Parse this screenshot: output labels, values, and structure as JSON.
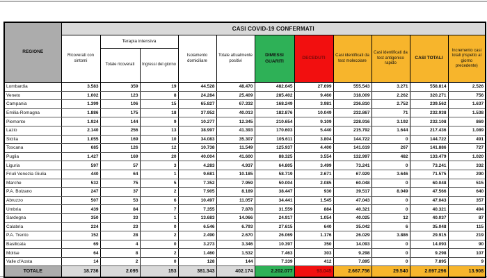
{
  "colors": {
    "header_gray": "#acacac",
    "band_gray": "#d9d9d9",
    "green": "#2eb157",
    "red": "#f20f0f",
    "amber": "#f7b52c",
    "deceduti_text": "#7e0a0a",
    "edge_gray": "#b0b0b0"
  },
  "chart_data": {
    "type": "table",
    "title": "CASI COVID-19 CONFERMATI",
    "columns": [
      "REGIONE",
      "Ricoverati con sintomi",
      "Totale ricoverati",
      "Ingressi del giorno",
      "Isolamento domiciliare",
      "Totale attualmente positivi",
      "DIMESSI GUARITI",
      "DECEDUTI",
      "Casi identificati da test molecolare",
      "Casi identificati da test antigenico rapido",
      "CASI TOTALI",
      "Incremento casi totali (rispetto al giorno precedente)"
    ],
    "column_groups": [
      {
        "label": "Terapia intensiva",
        "spans": [
          "Totale ricoverati",
          "Ingressi del giorno"
        ]
      }
    ],
    "rows": [
      {
        "regione": "Lombardia",
        "values": [
          "3.583",
          "359",
          "19",
          "44.528",
          "48.470",
          "482.645",
          "27.699",
          "555.543",
          "3.271",
          "558.814",
          "2.526"
        ]
      },
      {
        "regione": "Veneto",
        "values": [
          "1.002",
          "123",
          "8",
          "24.284",
          "25.409",
          "285.402",
          "9.460",
          "318.009",
          "2.262",
          "320.271",
          "756"
        ]
      },
      {
        "regione": "Campania",
        "values": [
          "1.399",
          "106",
          "15",
          "65.827",
          "67.332",
          "168.249",
          "3.981",
          "236.810",
          "2.752",
          "239.562",
          "1.637"
        ]
      },
      {
        "regione": "Emilia-Romagna",
        "values": [
          "1.886",
          "175",
          "18",
          "37.952",
          "40.013",
          "182.876",
          "10.049",
          "232.867",
          "71",
          "232.938",
          "1.538"
        ]
      },
      {
        "regione": "Piemonte",
        "values": [
          "1.924",
          "144",
          "9",
          "10.277",
          "12.345",
          "210.654",
          "9.109",
          "228.916",
          "3.192",
          "232.108",
          "869"
        ]
      },
      {
        "regione": "Lazio",
        "values": [
          "2.140",
          "256",
          "13",
          "38.997",
          "41.393",
          "170.603",
          "5.440",
          "215.792",
          "1.644",
          "217.436",
          "1.089"
        ]
      },
      {
        "regione": "Sicilia",
        "values": [
          "1.055",
          "169",
          "10",
          "34.083",
          "35.307",
          "105.611",
          "3.804",
          "144.722",
          "0",
          "144.722",
          "491"
        ]
      },
      {
        "regione": "Toscana",
        "values": [
          "685",
          "126",
          "12",
          "10.738",
          "11.549",
          "125.937",
          "4.400",
          "141.619",
          "267",
          "141.886",
          "727"
        ]
      },
      {
        "regione": "Puglia",
        "values": [
          "1.427",
          "169",
          "20",
          "40.004",
          "41.600",
          "88.325",
          "3.554",
          "132.997",
          "482",
          "133.479",
          "1.020"
        ]
      },
      {
        "regione": "Liguria",
        "values": [
          "597",
          "57",
          "3",
          "4.283",
          "4.937",
          "64.805",
          "3.499",
          "73.241",
          "0",
          "73.241",
          "332"
        ]
      },
      {
        "regione": "Friuli Venezia Giulia",
        "values": [
          "440",
          "64",
          "1",
          "9.681",
          "10.185",
          "58.719",
          "2.671",
          "67.929",
          "3.646",
          "71.575",
          "290"
        ]
      },
      {
        "regione": "Marche",
        "values": [
          "532",
          "75",
          "5",
          "7.352",
          "7.959",
          "50.004",
          "2.085",
          "60.048",
          "0",
          "60.048",
          "515"
        ]
      },
      {
        "regione": "P.A. Bolzano",
        "values": [
          "247",
          "37",
          "2",
          "7.905",
          "8.189",
          "38.447",
          "930",
          "39.517",
          "8.049",
          "47.566",
          "640"
        ]
      },
      {
        "regione": "Abruzzo",
        "values": [
          "507",
          "53",
          "6",
          "10.497",
          "11.057",
          "34.441",
          "1.545",
          "47.043",
          "0",
          "47.043",
          "357"
        ]
      },
      {
        "regione": "Umbria",
        "values": [
          "439",
          "84",
          "7",
          "7.355",
          "7.878",
          "31.559",
          "884",
          "40.321",
          "0",
          "40.321",
          "494"
        ]
      },
      {
        "regione": "Sardegna",
        "values": [
          "350",
          "33",
          "1",
          "13.683",
          "14.066",
          "24.917",
          "1.054",
          "40.025",
          "12",
          "40.037",
          "87"
        ]
      },
      {
        "regione": "Calabria",
        "values": [
          "224",
          "23",
          "0",
          "6.546",
          "6.793",
          "27.615",
          "640",
          "35.042",
          "6",
          "35.048",
          "115"
        ]
      },
      {
        "regione": "P.A. Trento",
        "values": [
          "152",
          "28",
          "2",
          "2.490",
          "2.670",
          "26.069",
          "1.176",
          "26.029",
          "3.886",
          "29.915",
          "219"
        ]
      },
      {
        "regione": "Basilicata",
        "values": [
          "69",
          "4",
          "0",
          "3.273",
          "3.346",
          "10.397",
          "350",
          "14.093",
          "0",
          "14.093",
          "90"
        ]
      },
      {
        "regione": "Molise",
        "values": [
          "64",
          "8",
          "2",
          "1.460",
          "1.532",
          "7.463",
          "303",
          "9.298",
          "0",
          "9.298",
          "107"
        ]
      },
      {
        "regione": "Valle d'Aosta",
        "values": [
          "14",
          "2",
          "0",
          "128",
          "144",
          "7.339",
          "412",
          "7.895",
          "0",
          "7.895",
          "9"
        ]
      }
    ],
    "total_row": {
      "regione": "TOTALE",
      "values": [
        "18.736",
        "2.095",
        "153",
        "381.343",
        "402.174",
        "2.202.077",
        "93.045",
        "2.667.756",
        "29.540",
        "2.697.296",
        "13.908"
      ]
    }
  }
}
